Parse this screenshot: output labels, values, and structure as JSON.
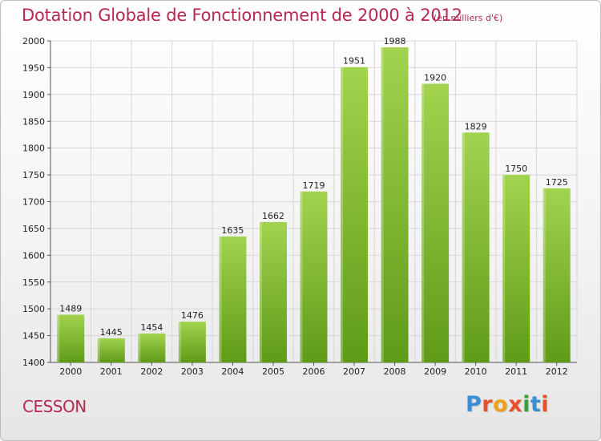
{
  "header": {
    "title": "Dotation Globale de Fonctionnement de 2000 à 2012",
    "unit": "(en milliers d'€)"
  },
  "footer": {
    "commune": "CESSON",
    "logo_text": "Proxiti"
  },
  "colors": {
    "title": "#b5284f",
    "bar_light": "#9fd14b",
    "bar_dark": "#5f9b17",
    "grid": "#d6d6d6"
  },
  "chart_data": {
    "type": "bar",
    "title": "Dotation Globale de Fonctionnement de 2000 à 2012",
    "xlabel": "",
    "ylabel": "",
    "ylim": [
      1400,
      2000
    ],
    "yticks": [
      1400,
      1450,
      1500,
      1550,
      1600,
      1650,
      1700,
      1750,
      1800,
      1850,
      1900,
      1950,
      2000
    ],
    "grid": true,
    "categories": [
      "2000",
      "2001",
      "2002",
      "2003",
      "2004",
      "2005",
      "2006",
      "2007",
      "2008",
      "2009",
      "2010",
      "2011",
      "2012"
    ],
    "values": [
      1489,
      1445,
      1454,
      1476,
      1635,
      1662,
      1719,
      1951,
      1988,
      1920,
      1829,
      1750,
      1725
    ]
  }
}
